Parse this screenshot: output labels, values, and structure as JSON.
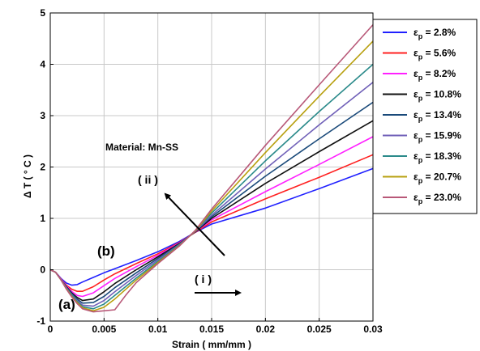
{
  "chart_data": {
    "type": "line",
    "xlabel": "Strain ( mm/mm )",
    "ylabel": "Δ T ( ° C )",
    "xlim": [
      0,
      0.03
    ],
    "ylim": [
      -1,
      5
    ],
    "x_ticks": [
      "0",
      "0.005",
      "0.01",
      "0.015",
      "0.02",
      "0.025",
      "0.03"
    ],
    "y_ticks": [
      "-1",
      "0",
      "1",
      "2",
      "3",
      "4",
      "5"
    ],
    "grid": true,
    "legend_position": "outside-right",
    "legend_symbol": "ε",
    "legend_subscript": "p",
    "series": [
      {
        "name": "= 2.8%",
        "color": "#2020ff",
        "points": [
          [
            0,
            0
          ],
          [
            0.0005,
            -0.05
          ],
          [
            0.001,
            -0.17
          ],
          [
            0.0015,
            -0.26
          ],
          [
            0.002,
            -0.3
          ],
          [
            0.0025,
            -0.29
          ],
          [
            0.003,
            -0.24
          ],
          [
            0.004,
            -0.15
          ],
          [
            0.005,
            -0.06
          ],
          [
            0.006,
            0.02
          ],
          [
            0.008,
            0.18
          ],
          [
            0.01,
            0.35
          ],
          [
            0.012,
            0.55
          ],
          [
            0.0135,
            0.73
          ],
          [
            0.015,
            0.89
          ],
          [
            0.02,
            1.2
          ],
          [
            0.025,
            1.58
          ],
          [
            0.03,
            1.97
          ]
        ]
      },
      {
        "name": "= 5.6%",
        "color": "#ff2020",
        "points": [
          [
            0,
            0
          ],
          [
            0.0005,
            -0.05
          ],
          [
            0.001,
            -0.18
          ],
          [
            0.0015,
            -0.3
          ],
          [
            0.002,
            -0.38
          ],
          [
            0.0025,
            -0.42
          ],
          [
            0.003,
            -0.42
          ],
          [
            0.004,
            -0.33
          ],
          [
            0.005,
            -0.2
          ],
          [
            0.006,
            -0.08
          ],
          [
            0.008,
            0.12
          ],
          [
            0.01,
            0.31
          ],
          [
            0.012,
            0.53
          ],
          [
            0.0135,
            0.73
          ],
          [
            0.015,
            0.93
          ],
          [
            0.02,
            1.38
          ],
          [
            0.025,
            1.8
          ],
          [
            0.03,
            2.24
          ]
        ]
      },
      {
        "name": "= 8.2%",
        "color": "#ff20ff",
        "points": [
          [
            0,
            0
          ],
          [
            0.0005,
            -0.05
          ],
          [
            0.001,
            -0.18
          ],
          [
            0.0015,
            -0.32
          ],
          [
            0.002,
            -0.42
          ],
          [
            0.0025,
            -0.5
          ],
          [
            0.003,
            -0.52
          ],
          [
            0.004,
            -0.45
          ],
          [
            0.005,
            -0.31
          ],
          [
            0.006,
            -0.17
          ],
          [
            0.008,
            0.06
          ],
          [
            0.01,
            0.28
          ],
          [
            0.012,
            0.52
          ],
          [
            0.0135,
            0.74
          ],
          [
            0.015,
            0.97
          ],
          [
            0.02,
            1.52
          ],
          [
            0.025,
            2.05
          ],
          [
            0.03,
            2.59
          ]
        ]
      },
      {
        "name": "= 10.8%",
        "color": "#101010",
        "points": [
          [
            0,
            0
          ],
          [
            0.0005,
            -0.05
          ],
          [
            0.001,
            -0.19
          ],
          [
            0.0015,
            -0.33
          ],
          [
            0.002,
            -0.45
          ],
          [
            0.0025,
            -0.54
          ],
          [
            0.003,
            -0.6
          ],
          [
            0.004,
            -0.57
          ],
          [
            0.005,
            -0.43
          ],
          [
            0.006,
            -0.27
          ],
          [
            0.008,
            0.0
          ],
          [
            0.01,
            0.25
          ],
          [
            0.012,
            0.51
          ],
          [
            0.0135,
            0.74
          ],
          [
            0.015,
            1.0
          ],
          [
            0.02,
            1.68
          ],
          [
            0.025,
            2.3
          ],
          [
            0.03,
            2.9
          ]
        ]
      },
      {
        "name": "= 13.4%",
        "color": "#1a4a7a",
        "points": [
          [
            0,
            0
          ],
          [
            0.0005,
            -0.05
          ],
          [
            0.001,
            -0.19
          ],
          [
            0.0015,
            -0.34
          ],
          [
            0.002,
            -0.47
          ],
          [
            0.0025,
            -0.57
          ],
          [
            0.003,
            -0.65
          ],
          [
            0.004,
            -0.64
          ],
          [
            0.005,
            -0.52
          ],
          [
            0.006,
            -0.35
          ],
          [
            0.008,
            -0.06
          ],
          [
            0.01,
            0.22
          ],
          [
            0.012,
            0.5
          ],
          [
            0.0135,
            0.75
          ],
          [
            0.015,
            1.03
          ],
          [
            0.02,
            1.82
          ],
          [
            0.025,
            2.55
          ],
          [
            0.03,
            3.26
          ]
        ]
      },
      {
        "name": "= 15.9%",
        "color": "#7060b8",
        "points": [
          [
            0,
            0
          ],
          [
            0.0005,
            -0.05
          ],
          [
            0.001,
            -0.19
          ],
          [
            0.0015,
            -0.35
          ],
          [
            0.002,
            -0.49
          ],
          [
            0.0025,
            -0.6
          ],
          [
            0.003,
            -0.69
          ],
          [
            0.004,
            -0.71
          ],
          [
            0.005,
            -0.6
          ],
          [
            0.006,
            -0.43
          ],
          [
            0.008,
            -0.11
          ],
          [
            0.01,
            0.19
          ],
          [
            0.012,
            0.49
          ],
          [
            0.0135,
            0.75
          ],
          [
            0.015,
            1.06
          ],
          [
            0.02,
            1.96
          ],
          [
            0.025,
            2.82
          ],
          [
            0.03,
            3.65
          ]
        ]
      },
      {
        "name": "= 18.3%",
        "color": "#2a8a8a",
        "points": [
          [
            0,
            0
          ],
          [
            0.0005,
            -0.05
          ],
          [
            0.001,
            -0.2
          ],
          [
            0.0015,
            -0.36
          ],
          [
            0.002,
            -0.5
          ],
          [
            0.0025,
            -0.62
          ],
          [
            0.003,
            -0.72
          ],
          [
            0.004,
            -0.76
          ],
          [
            0.005,
            -0.67
          ],
          [
            0.006,
            -0.5
          ],
          [
            0.008,
            -0.16
          ],
          [
            0.01,
            0.16
          ],
          [
            0.012,
            0.48
          ],
          [
            0.0135,
            0.76
          ],
          [
            0.015,
            1.1
          ],
          [
            0.02,
            2.12
          ],
          [
            0.025,
            3.08
          ],
          [
            0.03,
            4.0
          ]
        ]
      },
      {
        "name": "= 20.7%",
        "color": "#b8a010",
        "points": [
          [
            0,
            0
          ],
          [
            0.0005,
            -0.05
          ],
          [
            0.001,
            -0.2
          ],
          [
            0.0015,
            -0.37
          ],
          [
            0.002,
            -0.52
          ],
          [
            0.0025,
            -0.64
          ],
          [
            0.003,
            -0.74
          ],
          [
            0.004,
            -0.8
          ],
          [
            0.005,
            -0.73
          ],
          [
            0.006,
            -0.57
          ],
          [
            0.008,
            -0.2
          ],
          [
            0.01,
            0.14
          ],
          [
            0.012,
            0.47
          ],
          [
            0.0135,
            0.76
          ],
          [
            0.015,
            1.14
          ],
          [
            0.02,
            2.28
          ],
          [
            0.025,
            3.38
          ],
          [
            0.03,
            4.45
          ]
        ]
      },
      {
        "name": "= 23.0%",
        "color": "#b85878",
        "points": [
          [
            0,
            0
          ],
          [
            0.0005,
            -0.05
          ],
          [
            0.001,
            -0.2
          ],
          [
            0.0015,
            -0.38
          ],
          [
            0.002,
            -0.53
          ],
          [
            0.0025,
            -0.66
          ],
          [
            0.003,
            -0.76
          ],
          [
            0.004,
            -0.82
          ],
          [
            0.005,
            -0.8
          ],
          [
            0.006,
            -0.78
          ],
          [
            0.007,
            -0.5
          ],
          [
            0.008,
            -0.25
          ],
          [
            0.01,
            0.12
          ],
          [
            0.012,
            0.46
          ],
          [
            0.0135,
            0.77
          ],
          [
            0.015,
            1.18
          ],
          [
            0.02,
            2.42
          ],
          [
            0.025,
            3.6
          ],
          [
            0.03,
            4.77
          ]
        ]
      }
    ],
    "annotations": [
      {
        "text": "Material: Mn-SS"
      },
      {
        "text": "( ii )"
      },
      {
        "text": "(b)"
      },
      {
        "text": "(a)"
      },
      {
        "text": "( i )"
      }
    ]
  }
}
